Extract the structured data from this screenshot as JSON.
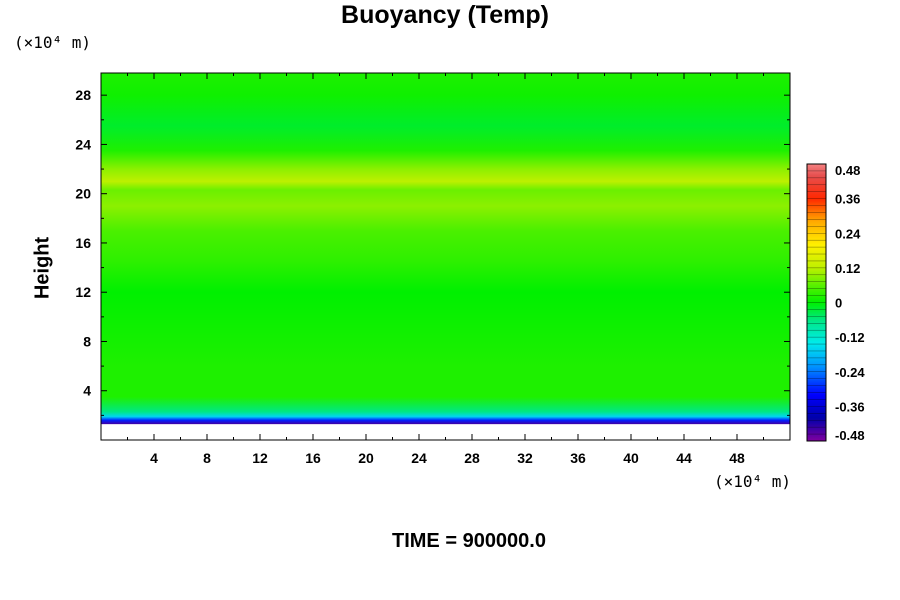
{
  "chart_data": {
    "type": "heatmap",
    "title": "Buoyancy (Temp)",
    "ylabel": "Height",
    "y_unit": "(×10⁴ m)",
    "x_unit": "(×10⁴ m)",
    "xlim": [
      0,
      52
    ],
    "ylim": [
      0,
      29.8
    ],
    "x_ticks": [
      4,
      8,
      12,
      16,
      20,
      24,
      28,
      32,
      36,
      40,
      44,
      48
    ],
    "y_ticks": [
      4,
      8,
      12,
      16,
      20,
      24,
      28
    ],
    "colorbar_levels": [
      0.48,
      0.36,
      0.24,
      0.12,
      0,
      -0.12,
      -0.24,
      -0.36,
      -0.48
    ],
    "colorbar_range": [
      -0.48,
      0.48
    ],
    "field_profile": [
      {
        "height": 0.0,
        "value": null
      },
      {
        "height": 1.3,
        "value": -0.44
      },
      {
        "height": 1.6,
        "value": -0.3
      },
      {
        "height": 1.9,
        "value": -0.16
      },
      {
        "height": 2.3,
        "value": -0.06
      },
      {
        "height": 3.5,
        "value": 0.02
      },
      {
        "height": 6.0,
        "value": 0.02
      },
      {
        "height": 9.0,
        "value": 0.01
      },
      {
        "height": 12.0,
        "value": 0.0
      },
      {
        "height": 14.5,
        "value": 0.03
      },
      {
        "height": 17.0,
        "value": 0.05
      },
      {
        "height": 19.0,
        "value": 0.09
      },
      {
        "height": 20.3,
        "value": 0.07
      },
      {
        "height": 21.0,
        "value": 0.12
      },
      {
        "height": 22.0,
        "value": 0.09
      },
      {
        "height": 23.5,
        "value": 0.02
      },
      {
        "height": 25.5,
        "value": -0.02
      },
      {
        "height": 28.0,
        "value": 0.01
      },
      {
        "height": 29.8,
        "value": 0.02
      }
    ]
  },
  "footer": {
    "time_text": "TIME = 900000.0"
  }
}
